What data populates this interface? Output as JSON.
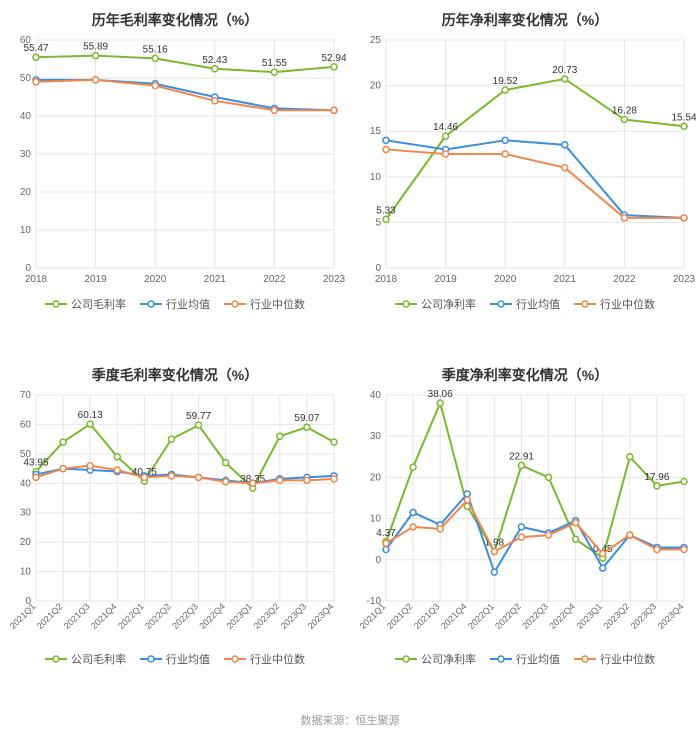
{
  "palette": {
    "company": "#7cb82f",
    "industry_avg": "#3a8de0",
    "industry_median": "#f0874c",
    "grid": "#e6e6e6",
    "axis": "#cccccc",
    "text": "#333333",
    "muted": "#666666",
    "background": "#ffffff"
  },
  "footer": "数据来源：恒生聚源",
  "legend_labels": {
    "annual_gross": {
      "company": "公司毛利率",
      "avg": "行业均值",
      "median": "行业中位数"
    },
    "annual_net": {
      "company": "公司净利率",
      "avg": "行业均值",
      "median": "行业中位数"
    },
    "quarter_gross": {
      "company": "公司毛利率",
      "avg": "行业均值",
      "median": "行业中位数"
    },
    "quarter_net": {
      "company": "公司净利率",
      "avg": "行业均值",
      "median": "行业中位数"
    }
  },
  "charts": {
    "annual_gross": {
      "type": "line",
      "title": "历年毛利率变化情况（%）",
      "categories": [
        "2018",
        "2019",
        "2020",
        "2021",
        "2022",
        "2023"
      ],
      "ylim": [
        0,
        60
      ],
      "ytick_step": 10,
      "title_fontsize": 14,
      "label_fontsize": 10,
      "line_width": 2,
      "marker_radius": 3,
      "series": [
        {
          "key": "company",
          "name": "公司毛利率",
          "color": "#7cb82f",
          "marker": "circle_hollow",
          "values": [
            55.47,
            55.89,
            55.16,
            52.43,
            51.55,
            52.94
          ],
          "labels": [
            "55.47",
            "55.89",
            "55.16",
            "52.43",
            "51.55",
            "52.94"
          ]
        },
        {
          "key": "avg",
          "name": "行业均值",
          "color": "#3a8de0",
          "marker": "circle_hollow",
          "values": [
            49.5,
            49.5,
            48.5,
            45.0,
            42.0,
            41.5
          ]
        },
        {
          "key": "median",
          "name": "行业中位数",
          "color": "#f0874c",
          "marker": "circle_hollow",
          "values": [
            49.0,
            49.5,
            48.0,
            44.0,
            41.5,
            41.5
          ]
        }
      ]
    },
    "annual_net": {
      "type": "line",
      "title": "历年净利率变化情况（%）",
      "categories": [
        "2018",
        "2019",
        "2020",
        "2021",
        "2022",
        "2023"
      ],
      "ylim": [
        0,
        25
      ],
      "ytick_step": 5,
      "title_fontsize": 14,
      "label_fontsize": 10,
      "line_width": 2,
      "marker_radius": 3,
      "series": [
        {
          "key": "company",
          "name": "公司净利率",
          "color": "#7cb82f",
          "marker": "circle_hollow",
          "values": [
            5.33,
            14.46,
            19.52,
            20.73,
            16.28,
            15.54
          ],
          "labels": [
            "5.33",
            "14.46",
            "19.52",
            "20.73",
            "16.28",
            "15.54"
          ]
        },
        {
          "key": "avg",
          "name": "行业均值",
          "color": "#3a8de0",
          "marker": "circle_hollow",
          "values": [
            14.0,
            13.0,
            14.0,
            13.5,
            5.8,
            5.5
          ]
        },
        {
          "key": "median",
          "name": "行业中位数",
          "color": "#f0874c",
          "marker": "circle_hollow",
          "values": [
            13.0,
            12.5,
            12.5,
            11.0,
            5.5,
            5.5
          ]
        }
      ]
    },
    "quarter_gross": {
      "type": "line",
      "title": "季度毛利率变化情况（%）",
      "categories": [
        "2021Q1",
        "2021Q2",
        "2021Q3",
        "2021Q4",
        "2022Q1",
        "2022Q2",
        "2022Q3",
        "2022Q4",
        "2023Q1",
        "2023Q2",
        "2023Q3",
        "2023Q4"
      ],
      "ylim": [
        0,
        70
      ],
      "ytick_step": 10,
      "title_fontsize": 14,
      "label_fontsize": 10,
      "rotate_x": -45,
      "line_width": 2,
      "marker_radius": 3,
      "series": [
        {
          "key": "company",
          "name": "公司毛利率",
          "color": "#7cb82f",
          "marker": "circle_hollow",
          "values": [
            43.95,
            54.0,
            60.13,
            49.0,
            40.75,
            55.0,
            59.77,
            47.0,
            38.35,
            56.0,
            59.07,
            54.0
          ],
          "labels": [
            "43.95",
            "",
            "60.13",
            "",
            "40.75",
            "",
            "59.77",
            "",
            "38.35",
            "",
            "59.07",
            ""
          ]
        },
        {
          "key": "avg",
          "name": "行业均值",
          "color": "#3a8de0",
          "marker": "circle_hollow",
          "values": [
            43.0,
            45.0,
            44.5,
            44.0,
            42.5,
            43.0,
            42.0,
            41.0,
            40.0,
            41.5,
            42.0,
            42.5
          ]
        },
        {
          "key": "median",
          "name": "行业中位数",
          "color": "#f0874c",
          "marker": "circle_hollow",
          "values": [
            42.0,
            45.0,
            46.0,
            44.5,
            42.0,
            42.5,
            42.0,
            40.5,
            40.0,
            41.0,
            41.0,
            41.5
          ]
        }
      ]
    },
    "quarter_net": {
      "type": "line",
      "title": "季度净利率变化情况（%）",
      "categories": [
        "2021Q1",
        "2021Q2",
        "2021Q3",
        "2021Q4",
        "2022Q1",
        "2022Q2",
        "2022Q3",
        "2022Q4",
        "2023Q1",
        "2023Q2",
        "2023Q3",
        "2023Q4"
      ],
      "ylim": [
        -10,
        40
      ],
      "ytick_step": 10,
      "title_fontsize": 14,
      "label_fontsize": 10,
      "rotate_x": -45,
      "line_width": 2,
      "marker_radius": 3,
      "series": [
        {
          "key": "company",
          "name": "公司净利率",
          "color": "#7cb82f",
          "marker": "circle_hollow",
          "values": [
            4.37,
            22.5,
            38.06,
            13.0,
            1.98,
            22.91,
            20.0,
            5.0,
            0.45,
            25.0,
            17.96,
            19.0
          ],
          "labels": [
            "4.37",
            "",
            "38.06",
            "",
            "1.98",
            "22.91",
            "",
            "",
            "0.45",
            "",
            "17.96",
            ""
          ]
        },
        {
          "key": "avg",
          "name": "行业均值",
          "color": "#3a8de0",
          "marker": "circle_hollow",
          "values": [
            2.5,
            11.5,
            8.5,
            16.0,
            -3.0,
            8.0,
            6.5,
            9.5,
            -2.0,
            6.0,
            3.0,
            3.0
          ]
        },
        {
          "key": "median",
          "name": "行业中位数",
          "color": "#f0874c",
          "marker": "circle_hollow",
          "values": [
            4.0,
            8.0,
            7.5,
            14.5,
            2.0,
            5.5,
            6.0,
            9.0,
            1.5,
            6.0,
            2.5,
            2.5
          ]
        }
      ]
    }
  }
}
